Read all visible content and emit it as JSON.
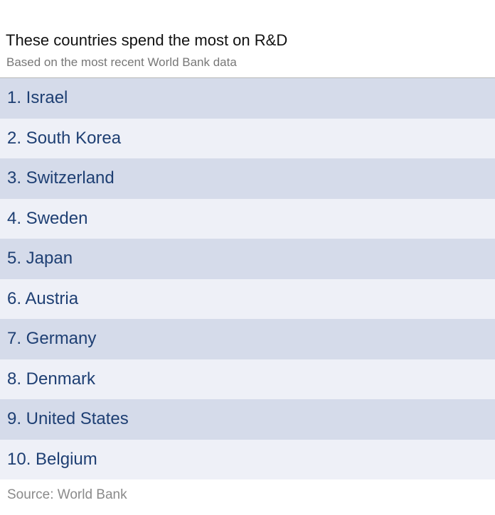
{
  "chart_data": {
    "type": "table",
    "title": "These countries spend the most on R&D",
    "subtitle": "Based on the most recent World Bank data",
    "rows": [
      "1. Israel",
      "2. South Korea",
      "3. Switzerland",
      "4. Sweden",
      "5. Japan",
      "6. Austria",
      "7. Germany",
      "8. Denmark",
      "9. United States",
      "10. Belgium"
    ],
    "source": "Source: World Bank"
  },
  "colors": {
    "odd_row": "#d5dbea",
    "even_row": "#eef0f7",
    "row_text": "#1e3f73"
  }
}
